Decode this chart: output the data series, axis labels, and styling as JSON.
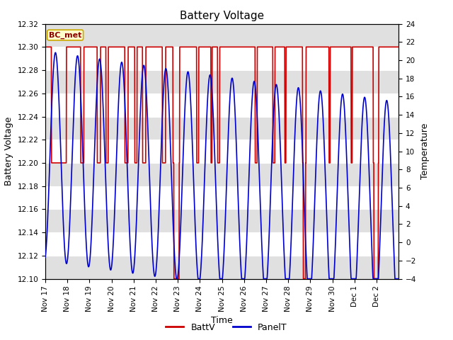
{
  "title": "Battery Voltage",
  "xlabel": "Time",
  "ylabel_left": "Battery Voltage",
  "ylabel_right": "Temperature",
  "ylim_left": [
    12.1,
    12.32
  ],
  "ylim_right": [
    -4,
    24
  ],
  "xlim": [
    0,
    16
  ],
  "xtick_labels": [
    "Nov 17",
    "Nov 18",
    "Nov 19",
    "Nov 20",
    "Nov 21",
    "Nov 22",
    "Nov 23",
    "Nov 24",
    "Nov 25",
    "Nov 26",
    "Nov 27",
    "Nov 28",
    "Nov 29",
    "Nov 30",
    "Dec 1",
    "Dec 2"
  ],
  "xtick_positions": [
    0,
    1,
    2,
    3,
    4,
    5,
    6,
    7,
    8,
    9,
    10,
    11,
    12,
    13,
    14,
    15
  ],
  "batt_color": "#cc0000",
  "panel_color": "#0000cc",
  "legend_label_batt": "BattV",
  "legend_label_panel": "PanelT",
  "station_label": "BC_met",
  "bg_band_color": "#e0e0e0",
  "title_fontsize": 11,
  "axis_label_fontsize": 9,
  "tick_fontsize": 7.5
}
